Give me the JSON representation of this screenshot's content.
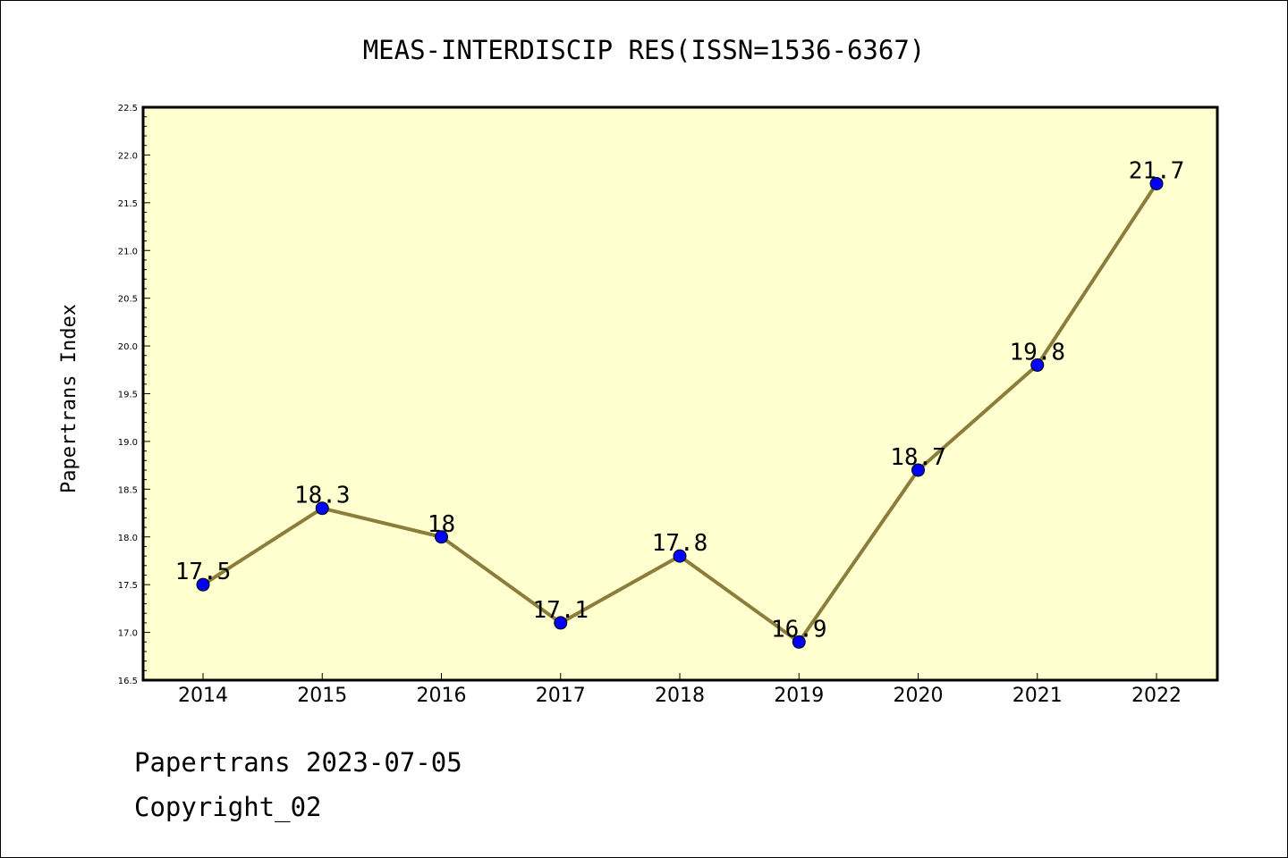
{
  "chart_data": {
    "type": "line",
    "title": "MEAS-INTERDISCIP RES(ISSN=1536-6367)",
    "xlabel": "",
    "ylabel": "Papertrans Index",
    "categories": [
      "2014",
      "2015",
      "2016",
      "2017",
      "2018",
      "2019",
      "2020",
      "2021",
      "2022"
    ],
    "series": [
      {
        "values": [
          17.5,
          18.3,
          18.0,
          17.1,
          17.8,
          16.9,
          18.7,
          19.8,
          21.7
        ],
        "data_labels": [
          "17.5",
          "18.3",
          "18",
          "17.1",
          "17.8",
          "16.9",
          "18.7",
          "19.8",
          "21.7"
        ]
      }
    ],
    "ylim": [
      16.5,
      22.5
    ],
    "yticks": [
      "16.5",
      "17.0",
      "17.5",
      "18.0",
      "18.5",
      "19.0",
      "19.5",
      "20.0",
      "20.5",
      "21.0",
      "21.5",
      "22.0",
      "22.5"
    ],
    "grid": false,
    "legend": "none",
    "colors": {
      "plot_background": "#ffffd0",
      "line": "#8b7d3a",
      "marker": "#0000ff"
    }
  },
  "footer": {
    "line1": "Papertrans 2023-07-05",
    "line2": "Copyright_02"
  }
}
